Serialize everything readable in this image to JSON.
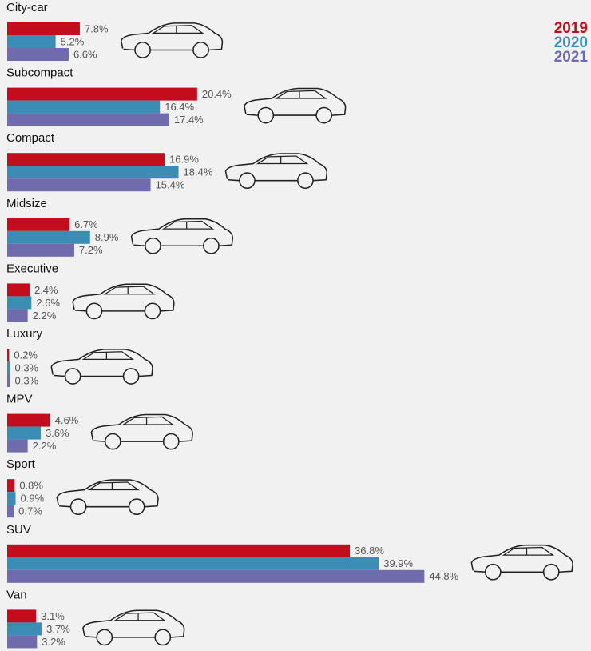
{
  "chart_data": {
    "type": "bar",
    "orientation": "horizontal",
    "categories": [
      "City-car",
      "Subcompact",
      "Compact",
      "Midsize",
      "Executive",
      "Luxury",
      "MPV",
      "Sport",
      "SUV",
      "Van"
    ],
    "series": [
      {
        "name": "2019",
        "color": "#c30d1c",
        "values": [
          7.8,
          20.4,
          16.9,
          6.7,
          2.4,
          0.2,
          4.6,
          0.8,
          36.8,
          3.1
        ],
        "value_labels": [
          "7.8%",
          "20.4%",
          "16.9%",
          "6.7%",
          "2.4%",
          "0.2%",
          "4.6%",
          "0.8%",
          "36.8%",
          "3.1%"
        ]
      },
      {
        "name": "2020",
        "color": "#3b8db5",
        "values": [
          5.2,
          16.4,
          18.4,
          8.9,
          2.6,
          0.3,
          3.6,
          0.9,
          39.9,
          3.7
        ],
        "value_labels": [
          "5.2%",
          "16.4%",
          "18.4%",
          "8.9%",
          "2.6%",
          "0.3%",
          "3.6%",
          "0.9%",
          "39.9%",
          "3.7%"
        ]
      },
      {
        "name": "2021",
        "color": "#6f6bad",
        "values": [
          6.6,
          17.4,
          15.4,
          7.2,
          2.2,
          0.3,
          2.2,
          0.7,
          44.8,
          3.2
        ],
        "value_labels": [
          "6.6%",
          "17.4%",
          "15.4%",
          "7.2%",
          "2.2%",
          "0.3%",
          "2.2%",
          "0.7%",
          "44.8%",
          "3.2%"
        ]
      }
    ],
    "legend": "top-right"
  }
}
